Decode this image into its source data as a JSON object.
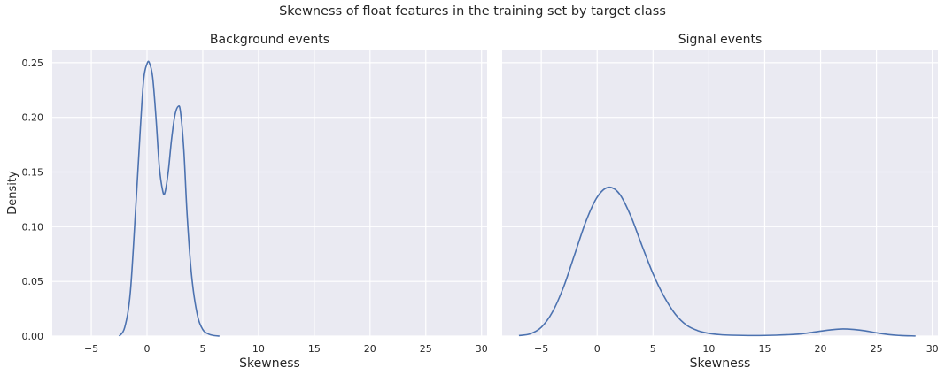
{
  "figure": {
    "suptitle": "Skewness of float features in the training set by target class"
  },
  "chart_data": [
    {
      "type": "line",
      "title": "Background events",
      "xlabel": "Skewness",
      "ylabel": "Density",
      "xlim": [
        -8.5,
        30.5
      ],
      "ylim": [
        0,
        0.262
      ],
      "xticks": [
        -5,
        0,
        5,
        10,
        15,
        20,
        25,
        30
      ],
      "yticks": [
        0.0,
        0.05,
        0.1,
        0.15,
        0.2,
        0.25
      ],
      "ytick_labels": [
        "0.00",
        "0.05",
        "0.10",
        "0.15",
        "0.20",
        "0.25"
      ],
      "grid": true,
      "series": [
        {
          "color": "#4c72b0",
          "x": [
            -2.5,
            -2.0,
            -1.5,
            -1.0,
            -0.6,
            -0.3,
            0.0,
            0.2,
            0.5,
            0.8,
            1.1,
            1.4,
            1.6,
            1.9,
            2.2,
            2.5,
            2.8,
            3.0,
            3.3,
            3.6,
            4.0,
            4.5,
            5.0,
            5.5,
            6.0,
            6.5
          ],
          "y": [
            0.0,
            0.008,
            0.04,
            0.12,
            0.19,
            0.235,
            0.249,
            0.25,
            0.237,
            0.2,
            0.155,
            0.133,
            0.131,
            0.15,
            0.18,
            0.202,
            0.21,
            0.205,
            0.17,
            0.11,
            0.055,
            0.02,
            0.006,
            0.002,
            0.0005,
            0.0
          ]
        }
      ]
    },
    {
      "type": "line",
      "title": "Signal events",
      "xlabel": "Skewness",
      "ylabel": "",
      "xlim": [
        -8.5,
        30.5
      ],
      "ylim": [
        0,
        0.262
      ],
      "xticks": [
        -5,
        0,
        5,
        10,
        15,
        20,
        25,
        30
      ],
      "yticks": [
        0.0,
        0.05,
        0.1,
        0.15,
        0.2,
        0.25
      ],
      "grid": true,
      "series": [
        {
          "color": "#4c72b0",
          "x": [
            -7,
            -6,
            -5,
            -4,
            -3,
            -2,
            -1,
            0,
            1,
            2,
            3,
            4,
            5,
            6,
            7,
            8,
            9,
            10,
            11,
            12,
            14,
            16,
            18,
            19,
            20,
            21,
            22,
            23,
            24,
            25,
            26,
            27,
            28.5
          ],
          "y": [
            0.0005,
            0.002,
            0.008,
            0.022,
            0.045,
            0.075,
            0.105,
            0.127,
            0.136,
            0.13,
            0.11,
            0.083,
            0.057,
            0.036,
            0.02,
            0.01,
            0.005,
            0.0025,
            0.0013,
            0.0008,
            0.0005,
            0.0008,
            0.0018,
            0.003,
            0.0045,
            0.0058,
            0.0065,
            0.006,
            0.0048,
            0.003,
            0.0015,
            0.0006,
            0.0001
          ]
        }
      ]
    }
  ]
}
